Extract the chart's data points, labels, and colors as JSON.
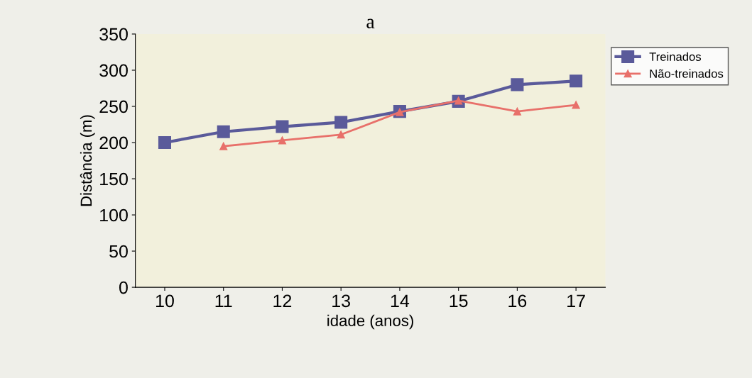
{
  "chart_data": {
    "type": "line",
    "title": "a",
    "xlabel": "idade (anos)",
    "ylabel": "Distância (m)",
    "categories": [
      "10",
      "11",
      "12",
      "13",
      "14",
      "15",
      "16",
      "17"
    ],
    "series": [
      {
        "name": "Treinados",
        "color": "#5a5a9a",
        "marker": "square",
        "values": [
          200,
          215,
          222,
          228,
          243,
          257,
          280,
          285
        ]
      },
      {
        "name": "Não-treinados",
        "color": "#e8706a",
        "marker": "triangle",
        "values": [
          null,
          195,
          203,
          211,
          242,
          258,
          243,
          252
        ]
      }
    ],
    "ylim": [
      0,
      350
    ],
    "yticks": [
      0,
      50,
      100,
      150,
      200,
      250,
      300,
      350
    ],
    "grid": false,
    "legend": "top right",
    "line_style": "solid"
  }
}
